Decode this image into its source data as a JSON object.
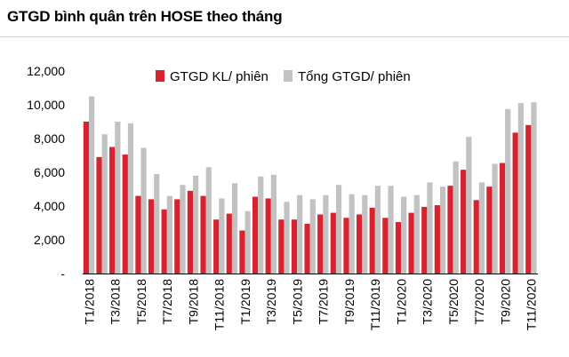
{
  "title": "GTGD bình quân trên HOSE theo tháng",
  "chart_data": {
    "type": "bar",
    "title": "GTGD bình quân trên HOSE theo tháng",
    "xlabel": "",
    "ylabel": "",
    "ylim": [
      0,
      12000
    ],
    "yticks": [
      0,
      2000,
      4000,
      6000,
      8000,
      10000,
      12000
    ],
    "ytick_labels": [
      "-",
      "2,000",
      "4,000",
      "6,000",
      "8,000",
      "10,000",
      "12,000"
    ],
    "grid": false,
    "legend_position": "top",
    "categories": [
      "T1/2018",
      "T2/2018",
      "T3/2018",
      "T4/2018",
      "T5/2018",
      "T6/2018",
      "T7/2018",
      "T8/2018",
      "T9/2018",
      "T10/2018",
      "T11/2018",
      "T12/2018",
      "T1/2019",
      "T2/2019",
      "T3/2019",
      "T4/2019",
      "T5/2019",
      "T6/2019",
      "T7/2019",
      "T8/2019",
      "T9/2019",
      "T10/2019",
      "T11/2019",
      "T12/2019",
      "T1/2020",
      "T2/2020",
      "T3/2020",
      "T4/2020",
      "T5/2020",
      "T6/2020",
      "T7/2020",
      "T8/2020",
      "T9/2020",
      "T10/2020",
      "T11/2020"
    ],
    "x_tick_labels": [
      "T1/2018",
      "T3/2018",
      "T5/2018",
      "T7/2018",
      "T9/2018",
      "T11/2018",
      "T1/2019",
      "T3/2019",
      "T5/2019",
      "T7/2019",
      "T9/2019",
      "T11/2019",
      "T1/2020",
      "T3/2020",
      "T5/2020",
      "T7/2020",
      "T9/2020",
      "T11/2020"
    ],
    "series": [
      {
        "name": "GTGD KL/ phiên",
        "color": "#d6232f",
        "values": [
          9000,
          6900,
          7500,
          7050,
          4600,
          4400,
          3800,
          4400,
          4900,
          4600,
          3200,
          3550,
          2550,
          4550,
          4450,
          3200,
          3200,
          2950,
          3500,
          3600,
          3300,
          3500,
          3900,
          3300,
          3050,
          3600,
          3950,
          4050,
          5200,
          6150,
          4350,
          5150,
          6550,
          8350,
          8800
        ]
      },
      {
        "name": "Tổng GTGD/ phiên",
        "color": "#c2c2c2",
        "values": [
          10500,
          8250,
          9000,
          8900,
          7450,
          5900,
          4600,
          5250,
          5800,
          6300,
          4450,
          5350,
          3700,
          5750,
          5850,
          4250,
          4650,
          4400,
          4650,
          5250,
          4700,
          4650,
          5200,
          5200,
          4550,
          4650,
          5400,
          5150,
          6650,
          8100,
          5400,
          6500,
          9750,
          10100,
          10150
        ]
      }
    ]
  }
}
